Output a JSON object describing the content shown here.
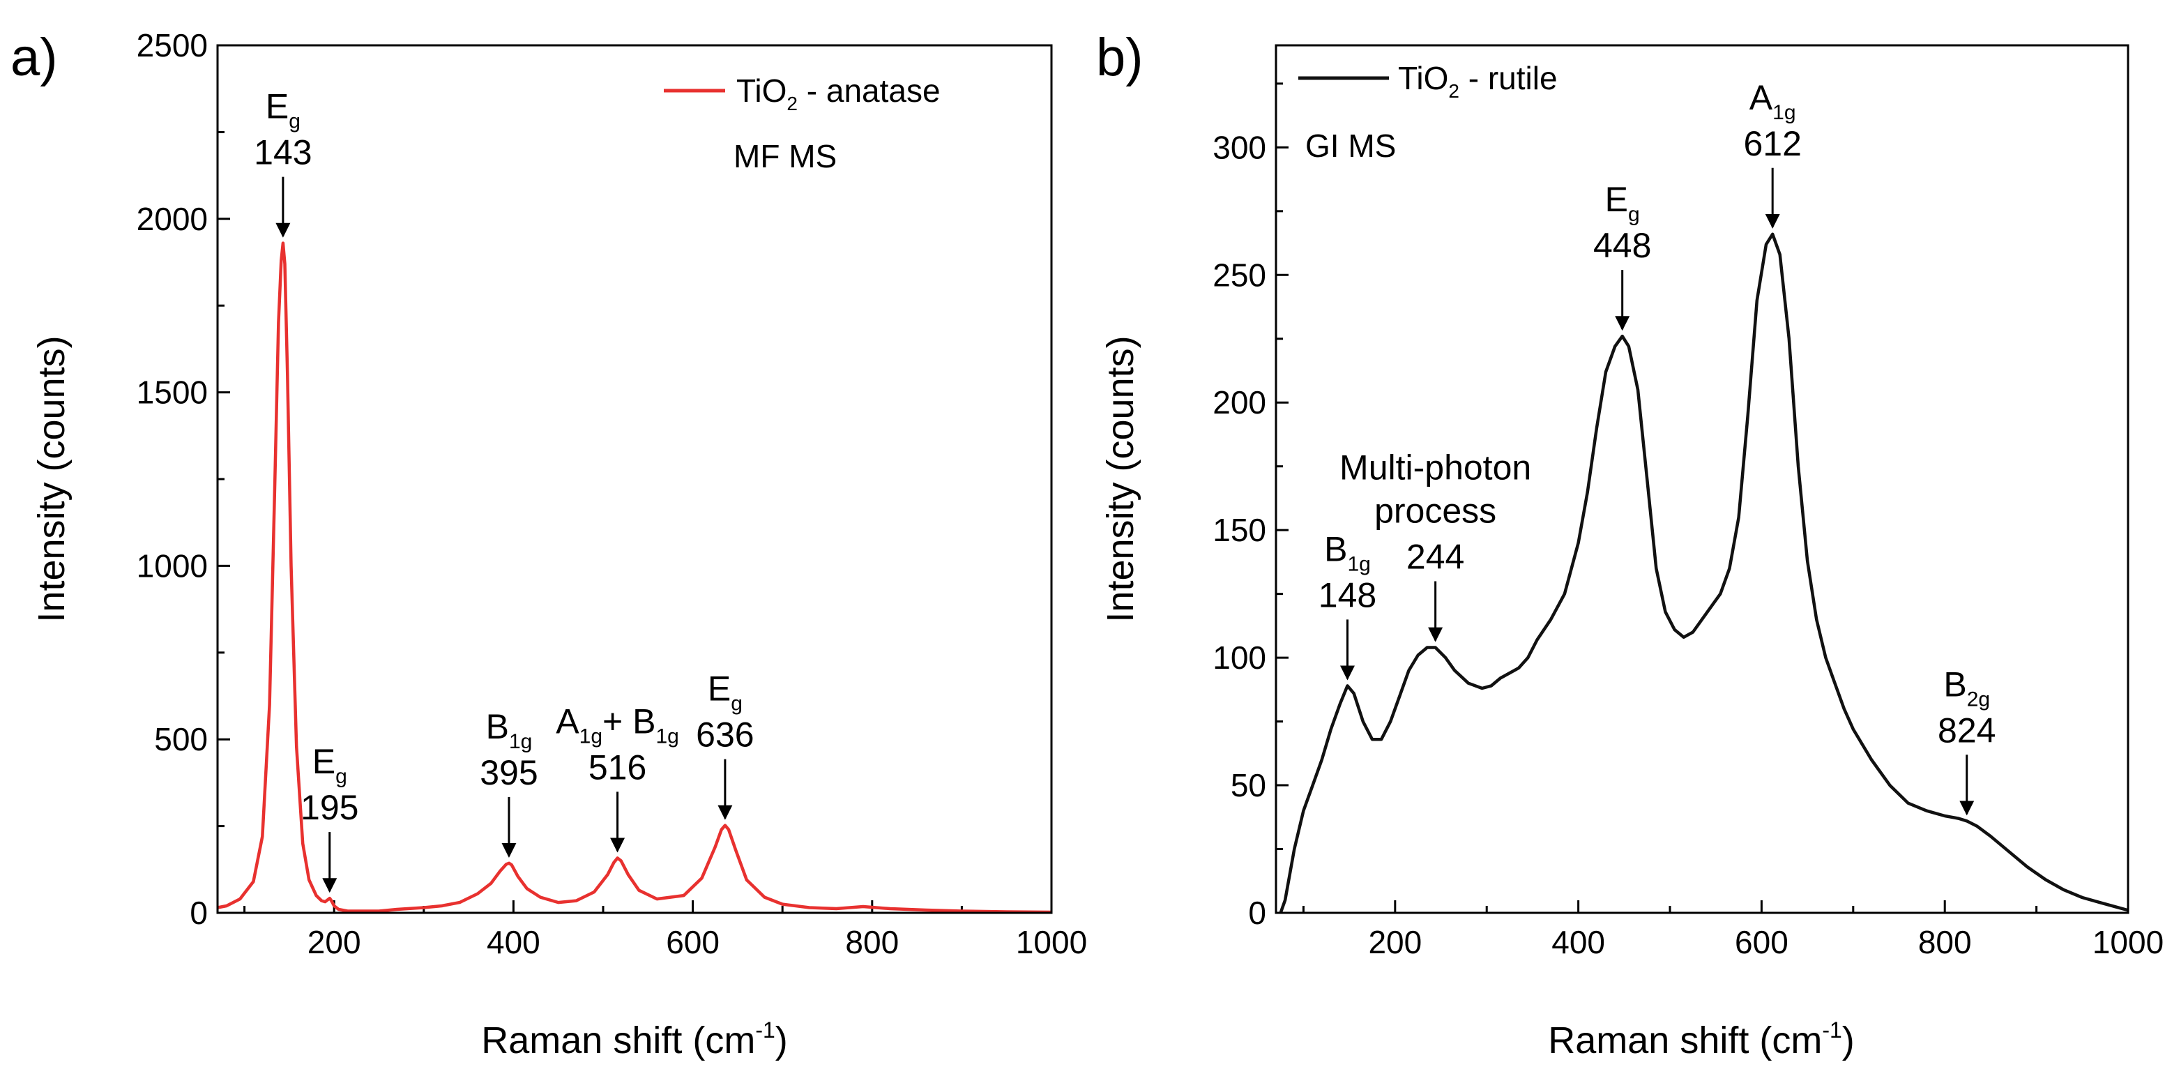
{
  "chart_data": [
    {
      "panel_label": "a)",
      "type": "line",
      "xlabel": "Raman shift (cm",
      "xlabel_sup": "-1",
      "xlabel_end": ")",
      "ylabel": "Intensity (counts)",
      "xlim": [
        70,
        1000
      ],
      "ylim": [
        0,
        2500
      ],
      "xticks": [
        200,
        400,
        600,
        800,
        1000
      ],
      "yticks": [
        0,
        500,
        1000,
        1500,
        2000,
        2500
      ],
      "series": [
        {
          "name": "TiO",
          "name_sub": "2",
          "name_rest": " - anatase",
          "color": "#e8312f",
          "x": [
            70,
            80,
            95,
            110,
            120,
            128,
            134,
            138,
            141,
            143,
            145,
            148,
            152,
            158,
            165,
            172,
            180,
            186,
            190,
            193,
            195,
            197,
            200,
            205,
            215,
            230,
            250,
            270,
            300,
            320,
            340,
            360,
            375,
            385,
            392,
            395,
            398,
            405,
            415,
            430,
            450,
            470,
            490,
            505,
            512,
            516,
            520,
            528,
            540,
            560,
            590,
            610,
            625,
            632,
            636,
            640,
            648,
            660,
            680,
            700,
            730,
            760,
            790,
            820,
            860,
            900,
            950,
            1000
          ],
          "y": [
            15,
            20,
            40,
            90,
            220,
            600,
            1250,
            1700,
            1880,
            1930,
            1870,
            1550,
            1000,
            480,
            200,
            95,
            50,
            35,
            32,
            38,
            42,
            35,
            20,
            10,
            5,
            5,
            5,
            10,
            15,
            20,
            30,
            55,
            85,
            120,
            140,
            143,
            138,
            105,
            70,
            45,
            30,
            35,
            60,
            110,
            145,
            158,
            150,
            110,
            65,
            40,
            50,
            100,
            190,
            240,
            252,
            240,
            180,
            95,
            45,
            25,
            15,
            12,
            18,
            12,
            8,
            5,
            3,
            2
          ]
        }
      ],
      "annotations": [
        {
          "label": "E",
          "sub": "g",
          "value": "143",
          "x": 143,
          "y": 1930
        },
        {
          "label": "E",
          "sub": "g",
          "value": "195",
          "x": 195,
          "y": 42
        },
        {
          "label": "B",
          "sub": "1g",
          "value": "395",
          "x": 395,
          "y": 143
        },
        {
          "label": "A",
          "sub": "1g",
          "label2": "+ B",
          "sub2": "1g",
          "value": "516",
          "x": 516,
          "y": 158
        },
        {
          "label": "E",
          "sub": "g",
          "value": "636",
          "x": 636,
          "y": 252
        }
      ],
      "sample_text": "MF MS",
      "legend_position": "top-right"
    },
    {
      "panel_label": "b)",
      "type": "line",
      "xlabel": "Raman shift (cm",
      "xlabel_sup": "-1",
      "xlabel_end": ")",
      "ylabel": "Intensity (counts)",
      "xlim": [
        70,
        1000
      ],
      "ylim": [
        0,
        340
      ],
      "xticks": [
        200,
        400,
        600,
        800,
        1000
      ],
      "yticks": [
        0,
        50,
        100,
        150,
        200,
        250,
        300
      ],
      "series": [
        {
          "name": "TiO",
          "name_sub": "2",
          "name_rest": " - rutile",
          "color": "#111111",
          "x": [
            75,
            80,
            85,
            90,
            100,
            110,
            120,
            130,
            140,
            148,
            155,
            165,
            175,
            185,
            195,
            205,
            215,
            225,
            235,
            244,
            255,
            265,
            280,
            295,
            305,
            315,
            325,
            335,
            345,
            355,
            370,
            385,
            400,
            410,
            420,
            430,
            440,
            448,
            455,
            465,
            475,
            485,
            495,
            505,
            515,
            525,
            535,
            545,
            555,
            565,
            575,
            585,
            595,
            605,
            612,
            620,
            630,
            640,
            650,
            660,
            670,
            680,
            690,
            700,
            720,
            740,
            760,
            780,
            800,
            815,
            824,
            835,
            850,
            870,
            890,
            910,
            930,
            950,
            970,
            990,
            1000
          ],
          "y": [
            0,
            5,
            15,
            25,
            40,
            50,
            60,
            72,
            82,
            89,
            86,
            75,
            68,
            68,
            75,
            85,
            95,
            101,
            104,
            104,
            100,
            95,
            90,
            88,
            89,
            92,
            94,
            96,
            100,
            107,
            115,
            125,
            145,
            165,
            190,
            212,
            222,
            226,
            222,
            205,
            170,
            135,
            118,
            111,
            108,
            110,
            115,
            120,
            125,
            135,
            155,
            195,
            240,
            262,
            266,
            258,
            225,
            175,
            138,
            115,
            100,
            90,
            80,
            72,
            60,
            50,
            43,
            40,
            38,
            37,
            36,
            34,
            30,
            24,
            18,
            13,
            9,
            6,
            4,
            2,
            1
          ]
        }
      ],
      "annotations": [
        {
          "label": "B",
          "sub": "1g",
          "value": "148",
          "x": 148,
          "y": 89
        },
        {
          "text1": "Multi-photon",
          "text2": "process",
          "value": "244",
          "x": 244,
          "y": 104
        },
        {
          "label": "E",
          "sub": "g",
          "value": "448",
          "x": 448,
          "y": 226
        },
        {
          "label": "A",
          "sub": "1g",
          "value": "612",
          "x": 612,
          "y": 266
        },
        {
          "label": "B",
          "sub": "2g",
          "value": "824",
          "x": 824,
          "y": 36
        }
      ],
      "sample_text": "GI MS",
      "legend_position": "top-left"
    }
  ]
}
